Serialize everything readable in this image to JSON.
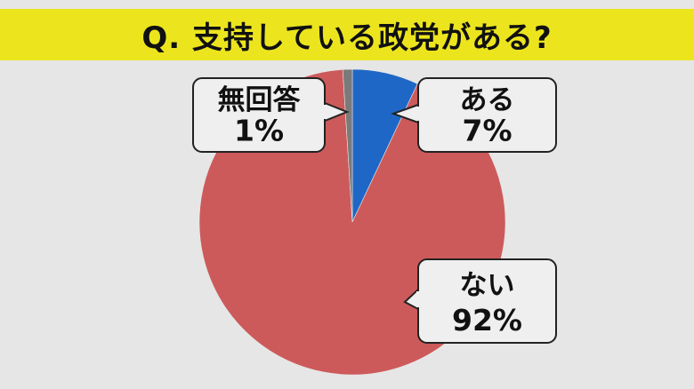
{
  "title": "Q. 支持している政党がある?",
  "colors": {
    "title_bg": "#ece51e",
    "background": "#e6e6e6"
  },
  "chart_data": {
    "type": "pie",
    "slices": [
      {
        "label": "ある",
        "value": 7,
        "value_text": "7%",
        "color": "#1f67c6"
      },
      {
        "label": "ない",
        "value": 92,
        "value_text": "92%",
        "color": "#cd5a5a"
      },
      {
        "label": "無回答",
        "value": 1,
        "value_text": "1%",
        "color": "#7a7a7a"
      }
    ]
  }
}
